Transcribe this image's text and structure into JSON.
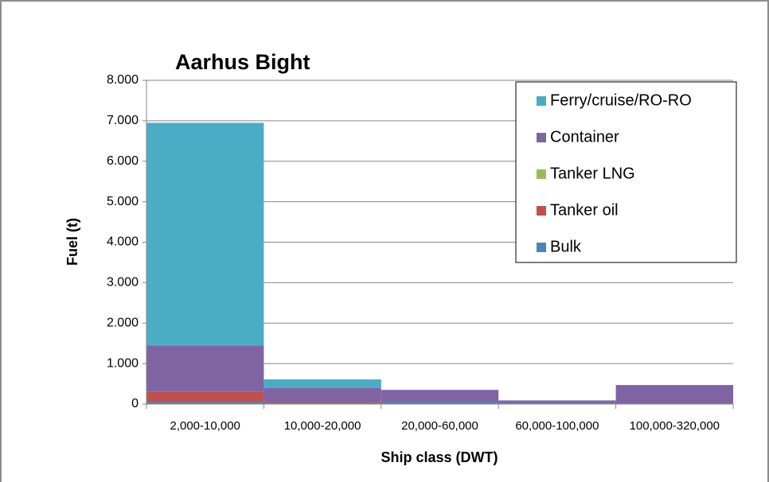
{
  "chart_data": {
    "type": "stacked_bar",
    "title": "Aarhus Bight",
    "x_label": "Ship class (DWT)",
    "y_label": "Fuel (t)",
    "categories": [
      "2,000-10,000",
      "10,000-20,000",
      "20,000-60,000",
      "60,000-100,000",
      "100,000-320,000"
    ],
    "series": [
      {
        "name": "Bulk",
        "color": "#4f81bd",
        "values": [
          50,
          30,
          50,
          30,
          20
        ]
      },
      {
        "name": "Tanker oil",
        "color": "#c0504d",
        "values": [
          250,
          20,
          0,
          0,
          0
        ]
      },
      {
        "name": "Tanker LNG",
        "color": "#9bbb59",
        "values": [
          0,
          0,
          0,
          0,
          0
        ]
      },
      {
        "name": "Container",
        "color": "#8064a2",
        "values": [
          1150,
          350,
          300,
          60,
          450
        ]
      },
      {
        "name": "Ferry/cruise/RO-RO",
        "color": "#4bacc6",
        "values": [
          5500,
          210,
          0,
          0,
          0
        ]
      }
    ],
    "ylim": [
      0,
      8000
    ],
    "yticks": [
      0,
      {
        "value": 1000,
        "label": "1.000"
      },
      {
        "value": 2000,
        "label": "2.000"
      },
      {
        "value": 3000,
        "label": "3.000"
      },
      {
        "value": 4000,
        "label": "4.000"
      },
      {
        "value": 5000,
        "label": "5.000"
      },
      {
        "value": 6000,
        "label": "6.000"
      },
      {
        "value": 7000,
        "label": "7.000"
      },
      {
        "value": 8000,
        "label": "8.000"
      }
    ],
    "grid": true,
    "legend": "upper right"
  }
}
